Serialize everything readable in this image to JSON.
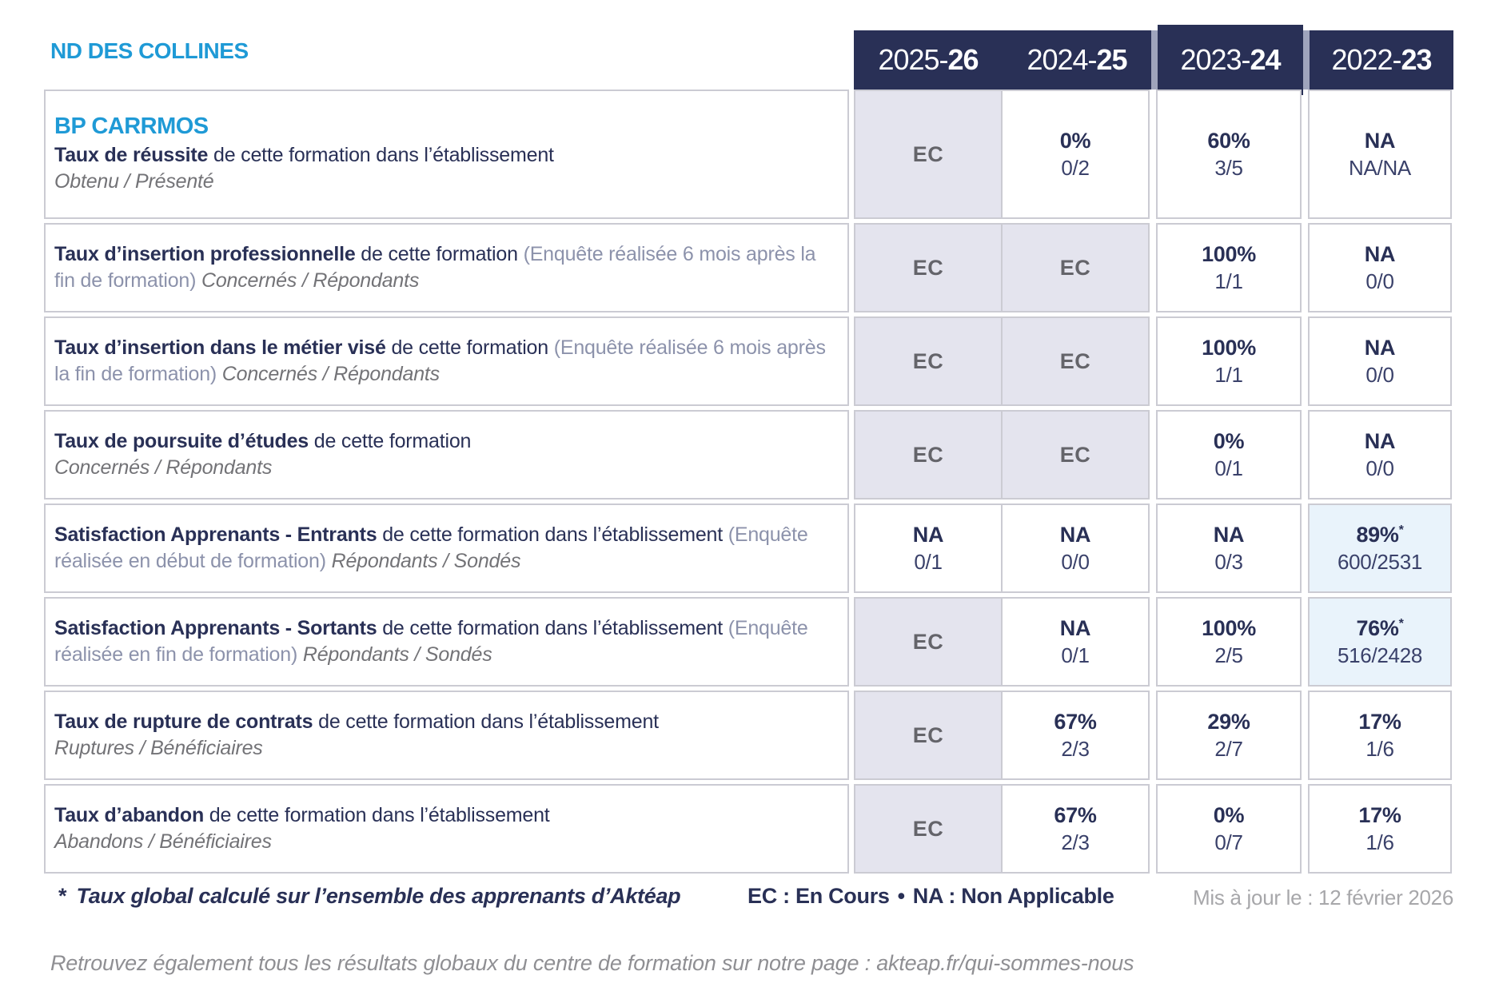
{
  "brand": {
    "name": "ND DES COLLINES"
  },
  "colors": {
    "navy": "#293056",
    "cyan": "#1f9ad6",
    "ec_cell_background": "#e4e4ee",
    "highlight_cell_background": "#e9f3fb",
    "border": "#cbcbd3"
  },
  "year_header": {
    "columns": [
      {
        "prefix": "2025-",
        "suffix": "26",
        "emphasized": false
      },
      {
        "prefix": "2024-",
        "suffix": "25",
        "emphasized": false
      },
      {
        "prefix": "2023-",
        "suffix": "24",
        "emphasized": true
      },
      {
        "prefix": "2022-",
        "suffix": "23",
        "emphasized": false
      }
    ]
  },
  "table": {
    "rows": [
      {
        "group": "BP CARRMOS",
        "title": "Taux de réussite",
        "desc": " de cette formation dans l’établissement",
        "paren": "",
        "note": "Obtenu / Présenté",
        "note_block": true,
        "cells": [
          {
            "kind": "ec",
            "text": "EC"
          },
          {
            "kind": "value",
            "pct": "0%",
            "frac": "0/2"
          },
          {
            "kind": "value",
            "pct": "60%",
            "frac": "3/5"
          },
          {
            "kind": "value",
            "pct": "NA",
            "frac": "NA/NA"
          }
        ]
      },
      {
        "title": "Taux d’insertion professionnelle",
        "desc": " de cette formation ",
        "paren": "(Enquête réalisée 6 mois après la fin de formation) ",
        "note": "Concernés / Répondants",
        "note_block": false,
        "cells": [
          {
            "kind": "ec",
            "text": "EC"
          },
          {
            "kind": "ec",
            "text": "EC"
          },
          {
            "kind": "value",
            "pct": "100%",
            "frac": "1/1"
          },
          {
            "kind": "value",
            "pct": "NA",
            "frac": "0/0"
          }
        ]
      },
      {
        "title": "Taux d’insertion dans le métier visé",
        "desc": " de cette formation ",
        "paren": "(Enquête réalisée 6 mois après la fin de formation) ",
        "note": "Concernés / Répondants",
        "note_block": false,
        "cells": [
          {
            "kind": "ec",
            "text": "EC"
          },
          {
            "kind": "ec",
            "text": "EC"
          },
          {
            "kind": "value",
            "pct": "100%",
            "frac": "1/1"
          },
          {
            "kind": "value",
            "pct": "NA",
            "frac": "0/0"
          }
        ]
      },
      {
        "title": "Taux de poursuite d’études",
        "desc": " de cette formation",
        "paren": "",
        "note": "Concernés / Répondants",
        "note_block": true,
        "cells": [
          {
            "kind": "ec",
            "text": "EC"
          },
          {
            "kind": "ec",
            "text": "EC"
          },
          {
            "kind": "value",
            "pct": "0%",
            "frac": "0/1"
          },
          {
            "kind": "value",
            "pct": "NA",
            "frac": "0/0"
          }
        ]
      },
      {
        "title": "Satisfaction Apprenants - Entrants",
        "desc": " de cette formation dans l’établissement ",
        "paren": "(Enquête réalisée en début de formation) ",
        "note": "Répondants / Sondés",
        "note_block": false,
        "cells": [
          {
            "kind": "value",
            "pct": "NA",
            "frac": "0/1"
          },
          {
            "kind": "value",
            "pct": "NA",
            "frac": "0/0"
          },
          {
            "kind": "value",
            "pct": "NA",
            "frac": "0/3"
          },
          {
            "kind": "value",
            "pct": "89%",
            "star": "*",
            "frac": "600/2531",
            "highlight": true
          }
        ]
      },
      {
        "title": "Satisfaction Apprenants - Sortants",
        "desc": " de cette formation dans l’établissement ",
        "paren": "(Enquête réalisée en fin de formation) ",
        "note": "Répondants / Sondés",
        "note_block": false,
        "cells": [
          {
            "kind": "ec",
            "text": "EC"
          },
          {
            "kind": "value",
            "pct": "NA",
            "frac": "0/1"
          },
          {
            "kind": "value",
            "pct": "100%",
            "frac": "2/5"
          },
          {
            "kind": "value",
            "pct": "76%",
            "star": "*",
            "frac": "516/2428",
            "highlight": true
          }
        ]
      },
      {
        "title": "Taux de rupture de contrats",
        "desc": " de cette formation dans l’établissement",
        "paren": "",
        "note": "Ruptures / Bénéficiaires",
        "note_block": true,
        "cells": [
          {
            "kind": "ec",
            "text": "EC"
          },
          {
            "kind": "value",
            "pct": "67%",
            "frac": "2/3"
          },
          {
            "kind": "value",
            "pct": "29%",
            "frac": "2/7"
          },
          {
            "kind": "value",
            "pct": "17%",
            "frac": "1/6"
          }
        ]
      },
      {
        "title": "Taux d’abandon",
        "desc": " de cette formation dans l’établissement",
        "paren": "",
        "note": "Abandons / Bénéficiaires",
        "note_block": true,
        "cells": [
          {
            "kind": "ec",
            "text": "EC"
          },
          {
            "kind": "value",
            "pct": "67%",
            "frac": "2/3"
          },
          {
            "kind": "value",
            "pct": "0%",
            "frac": "0/7"
          },
          {
            "kind": "value",
            "pct": "17%",
            "frac": "1/6"
          }
        ]
      }
    ]
  },
  "legend": {
    "star": "*",
    "footnote": "Taux global calculé sur l’ensemble des apprenants d’Aktéap",
    "ec": "EC : En Cours",
    "separator": "•",
    "na": "NA : Non Applicable",
    "updated": "Mis à jour le : 12 février 2026"
  },
  "bottom_note": {
    "text": "Retrouvez également tous les résultats globaux du centre de formation sur notre page : ",
    "url": "akteap.fr/qui-sommes-nous"
  }
}
